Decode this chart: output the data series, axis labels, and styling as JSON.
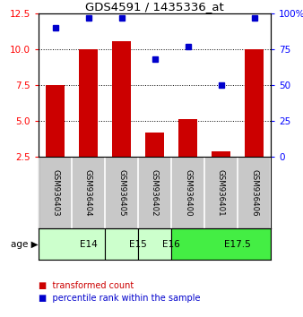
{
  "title": "GDS4591 / 1435336_at",
  "samples": [
    "GSM936403",
    "GSM936404",
    "GSM936405",
    "GSM936402",
    "GSM936400",
    "GSM936401",
    "GSM936406"
  ],
  "transformed_count": [
    7.5,
    10.0,
    10.55,
    4.2,
    5.1,
    2.9,
    10.0
  ],
  "percentile_rank": [
    90,
    97,
    97,
    68,
    77,
    50,
    97
  ],
  "ylim_left": [
    2.5,
    12.5
  ],
  "ylim_right": [
    0,
    100
  ],
  "yticks_left": [
    2.5,
    5.0,
    7.5,
    10.0,
    12.5
  ],
  "yticks_right": [
    0,
    25,
    50,
    75,
    100
  ],
  "ytick_labels_right": [
    "0",
    "25",
    "50",
    "75",
    "100%"
  ],
  "bar_color": "#cc0000",
  "dot_color": "#0000cc",
  "bar_width": 0.55,
  "age_groups": [
    {
      "label": "E14",
      "start": 0,
      "end": 2,
      "color": "#ccffcc"
    },
    {
      "label": "E15",
      "start": 2,
      "end": 3,
      "color": "#ccffcc"
    },
    {
      "label": "E16",
      "start": 3,
      "end": 4,
      "color": "#ccffcc"
    },
    {
      "label": "E17.5",
      "start": 4,
      "end": 7,
      "color": "#44ee44"
    }
  ],
  "legend_red_label": "transformed count",
  "legend_blue_label": "percentile rank within the sample",
  "age_label": "age",
  "background_color": "#ffffff",
  "sample_box_color": "#c8c8c8",
  "grid_lines": [
    5.0,
    7.5,
    10.0
  ]
}
